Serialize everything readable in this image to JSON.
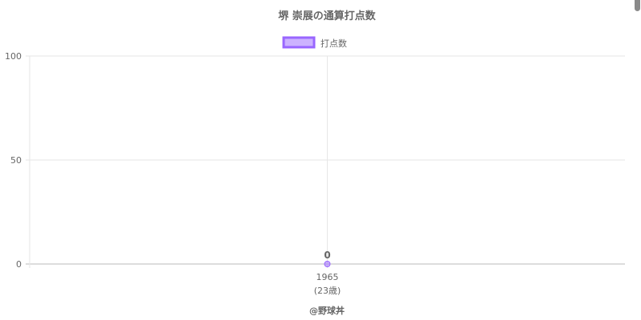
{
  "chart_data": {
    "type": "line",
    "title": "堺 崇展の通算打点数",
    "categories": [
      "1965"
    ],
    "category_sublabels": [
      "(23歳)"
    ],
    "series": [
      {
        "name": "打点数",
        "values": [
          0
        ],
        "color": "#9966ff",
        "fill": "rgba(153,102,255,0.5)"
      }
    ],
    "data_labels": [
      "0"
    ],
    "ylim": [
      0,
      100
    ],
    "yticks": [
      0,
      50,
      100
    ],
    "grid": true,
    "legend": "top"
  },
  "footer": {
    "credit": "@野球丼"
  }
}
